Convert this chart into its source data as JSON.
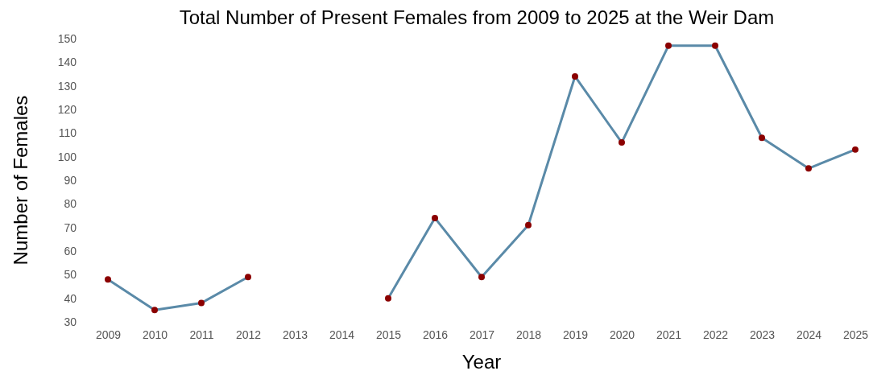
{
  "chart_data": {
    "type": "line",
    "title": "Total Number of Present Females from 2009 to 2025 at the Weir Dam",
    "xlabel": "Year",
    "ylabel": "Number of Females",
    "categories": [
      "2009",
      "2010",
      "2011",
      "2012",
      "2013",
      "2014",
      "2015",
      "2016",
      "2017",
      "2018",
      "2019",
      "2020",
      "2021",
      "2022",
      "2023",
      "2024",
      "2025"
    ],
    "series": [
      {
        "color": "#5a8aa8",
        "marker": "none",
        "values": [
          48,
          35,
          38,
          49,
          null,
          null,
          40,
          74,
          49,
          71,
          134,
          106,
          147,
          147,
          108,
          95,
          103
        ]
      },
      {
        "type": "scatter",
        "color": "#8b0000",
        "marker": "circle",
        "values": [
          48,
          35,
          38,
          49,
          null,
          null,
          40,
          74,
          49,
          71,
          134,
          106,
          147,
          147,
          108,
          95,
          103
        ]
      }
    ],
    "ylim": [
      30,
      150
    ],
    "yticks": [
      30,
      40,
      50,
      60,
      70,
      80,
      90,
      100,
      110,
      120,
      130,
      140,
      150
    ]
  }
}
